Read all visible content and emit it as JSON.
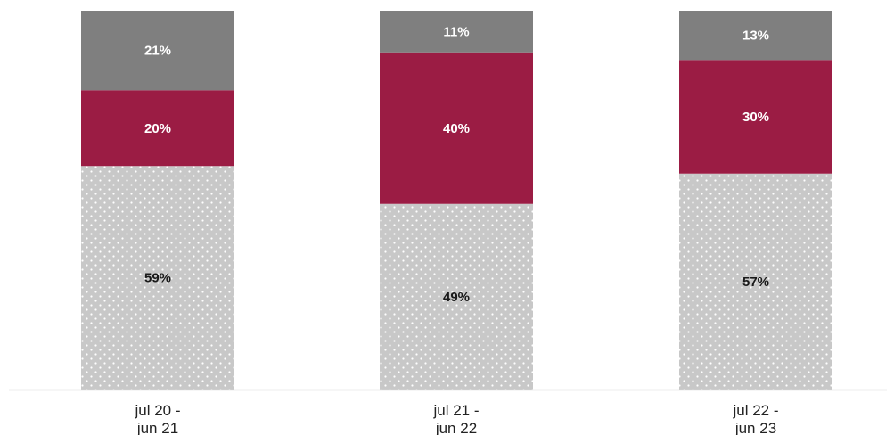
{
  "chart_data": {
    "type": "bar",
    "stacked": true,
    "normalized": true,
    "categories": [
      [
        "jul 20 -",
        "jun 21"
      ],
      [
        "jul 21 -",
        "jun 22"
      ],
      [
        "jul 22 -",
        "jun 23"
      ]
    ],
    "series": [
      {
        "values": [
          59,
          49,
          57
        ],
        "labels": [
          "59%",
          "49%",
          "57%"
        ],
        "color": "#c8c8c8",
        "pattern": "dots",
        "label_color": "#1a1a1a"
      },
      {
        "values": [
          20,
          40,
          30
        ],
        "labels": [
          "20%",
          "40%",
          "30%"
        ],
        "color": "#9b1c44",
        "label_color": "#ffffff"
      },
      {
        "values": [
          21,
          11,
          13
        ],
        "labels": [
          "21%",
          "11%",
          "13%"
        ],
        "color": "#7f7f7f",
        "label_color": "#ffffff"
      }
    ],
    "ylim": [
      0,
      100
    ],
    "grid": false,
    "legend": "none",
    "baseline_color": "#d9d9d9"
  }
}
